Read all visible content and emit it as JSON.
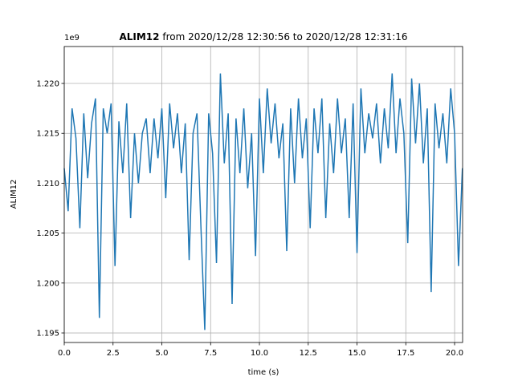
{
  "chart_data": {
    "type": "line",
    "title_bold": "ALIM12",
    "title_rest": "from 2020/12/28 12:30:56 to 2020/12/28 12:31:16",
    "x_label": "time (s)",
    "y_label": "ALIM12",
    "y_offset_label": "1e9",
    "x": [
      0,
      0.2,
      0.4,
      0.6,
      0.8,
      1,
      1.2,
      1.4,
      1.6,
      1.8,
      2,
      2.2,
      2.4,
      2.6,
      2.8,
      3,
      3.2,
      3.4,
      3.6,
      3.8,
      4,
      4.2,
      4.4,
      4.6,
      4.8,
      5,
      5.2,
      5.4,
      5.6,
      5.8,
      6,
      6.2,
      6.4,
      6.6,
      6.8,
      7,
      7.2,
      7.4,
      7.6,
      7.8,
      8,
      8.2,
      8.4,
      8.6,
      8.8,
      9,
      9.2,
      9.4,
      9.6,
      9.8,
      10,
      10.2,
      10.4,
      10.6,
      10.8,
      11,
      11.2,
      11.4,
      11.6,
      11.8,
      12,
      12.2,
      12.4,
      12.6,
      12.8,
      13,
      13.2,
      13.4,
      13.6,
      13.8,
      14,
      14.2,
      14.4,
      14.6,
      14.8,
      15,
      15.2,
      15.4,
      15.6,
      15.8,
      16,
      16.2,
      16.4,
      16.6,
      16.8,
      17,
      17.2,
      17.4,
      17.6,
      17.8,
      18,
      18.2,
      18.4,
      18.6,
      18.8,
      19,
      19.2,
      19.4,
      19.6,
      19.8,
      20,
      20.2,
      20.4
    ],
    "series": [
      {
        "color": "#1f77b4",
        "values": [
          1.2115,
          1.2072,
          1.2175,
          1.2145,
          1.2055,
          1.217,
          1.2105,
          1.216,
          1.2185,
          1.1965,
          1.2175,
          1.215,
          1.218,
          1.2017,
          1.2162,
          1.211,
          1.218,
          1.2065,
          1.215,
          1.21,
          1.215,
          1.2165,
          1.211,
          1.2165,
          1.2125,
          1.2175,
          1.2085,
          1.218,
          1.2135,
          1.217,
          1.211,
          1.216,
          1.2023,
          1.215,
          1.217,
          1.2058,
          1.1953,
          1.217,
          1.213,
          1.202,
          1.221,
          1.212,
          1.217,
          1.1979,
          1.2165,
          1.211,
          1.2175,
          1.2095,
          1.215,
          1.2027,
          1.2185,
          1.211,
          1.2195,
          1.214,
          1.218,
          1.2125,
          1.216,
          1.2032,
          1.2175,
          1.21,
          1.2185,
          1.2125,
          1.2165,
          1.2055,
          1.2175,
          1.213,
          1.2185,
          1.2065,
          1.216,
          1.211,
          1.2185,
          1.213,
          1.2165,
          1.2065,
          1.218,
          1.203,
          1.2195,
          1.213,
          1.217,
          1.2145,
          1.218,
          1.212,
          1.2175,
          1.2135,
          1.221,
          1.213,
          1.2185,
          1.215,
          1.204,
          1.2205,
          1.214,
          1.22,
          1.212,
          1.2175,
          1.1991,
          1.218,
          1.2135,
          1.217,
          1.212,
          1.2195,
          1.215,
          1.2017,
          1.2115
        ]
      }
    ],
    "xlim": [
      0,
      20.41
    ],
    "ylim": [
      1.19404,
      1.2237
    ],
    "xticks": [
      {
        "value": 0,
        "label": "0.0"
      },
      2.5,
      {
        "value": 5,
        "label": "5.0"
      },
      7.5,
      {
        "value": 10,
        "label": "10.0"
      },
      12.5,
      {
        "value": 15,
        "label": "15.0"
      },
      17.5,
      {
        "value": 20,
        "label": "20.0"
      }
    ],
    "yticks": [
      1.195,
      {
        "value": 1.2,
        "label": "1.200"
      },
      1.205,
      {
        "value": 1.21,
        "label": "1.210"
      },
      1.215,
      {
        "value": 1.22,
        "label": "1.220"
      }
    ],
    "grid": true
  }
}
